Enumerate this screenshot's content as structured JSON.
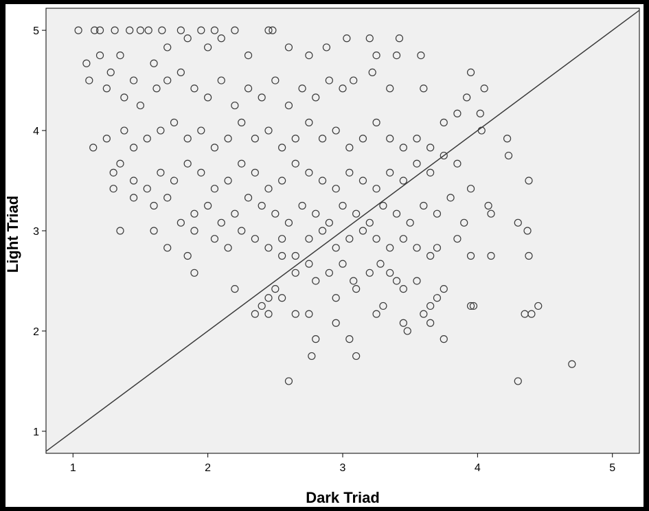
{
  "chart_data": {
    "type": "scatter",
    "title": "",
    "xlabel": "Dark Triad",
    "ylabel": "Light Triad",
    "xlim": [
      0.8,
      5.2
    ],
    "ylim": [
      0.78,
      5.22
    ],
    "x_ticks": [
      "1",
      "2",
      "3",
      "4",
      "5"
    ],
    "y_ticks": [
      "1",
      "2",
      "3",
      "4",
      "5"
    ],
    "grid": false,
    "legend": "none",
    "reference_line": {
      "from": [
        0.8,
        0.8
      ],
      "to": [
        5.2,
        5.2
      ]
    },
    "colors": {
      "background": "#f0f0f0",
      "marker": "#3a3a3a",
      "line": "#3a3a3a",
      "frame": "#000000"
    },
    "series": [
      {
        "marker": "open-circle",
        "points": [
          [
            1.04,
            5.0
          ],
          [
            1.16,
            5.0
          ],
          [
            1.2,
            5.0
          ],
          [
            1.31,
            5.0
          ],
          [
            1.42,
            5.0
          ],
          [
            1.5,
            5.0
          ],
          [
            1.56,
            5.0
          ],
          [
            1.66,
            5.0
          ],
          [
            1.8,
            5.0
          ],
          [
            1.95,
            5.0
          ],
          [
            2.05,
            5.0
          ],
          [
            2.2,
            5.0
          ],
          [
            2.45,
            5.0
          ],
          [
            2.48,
            5.0
          ],
          [
            1.1,
            4.67
          ],
          [
            1.2,
            4.75
          ],
          [
            1.35,
            4.75
          ],
          [
            1.28,
            4.58
          ],
          [
            1.45,
            4.5
          ],
          [
            1.6,
            4.67
          ],
          [
            1.7,
            4.83
          ],
          [
            1.85,
            4.92
          ],
          [
            2.0,
            4.83
          ],
          [
            2.1,
            4.92
          ],
          [
            2.3,
            4.75
          ],
          [
            2.6,
            4.83
          ],
          [
            2.75,
            4.75
          ],
          [
            2.88,
            4.83
          ],
          [
            3.03,
            4.92
          ],
          [
            3.2,
            4.92
          ],
          [
            3.25,
            4.75
          ],
          [
            3.42,
            4.92
          ],
          [
            3.4,
            4.75
          ],
          [
            3.58,
            4.75
          ],
          [
            1.12,
            4.5
          ],
          [
            1.25,
            4.42
          ],
          [
            1.38,
            4.33
          ],
          [
            1.5,
            4.25
          ],
          [
            1.62,
            4.42
          ],
          [
            1.7,
            4.5
          ],
          [
            1.8,
            4.58
          ],
          [
            1.9,
            4.42
          ],
          [
            2.0,
            4.33
          ],
          [
            2.1,
            4.5
          ],
          [
            2.2,
            4.25
          ],
          [
            2.3,
            4.42
          ],
          [
            2.4,
            4.33
          ],
          [
            2.5,
            4.5
          ],
          [
            2.6,
            4.25
          ],
          [
            2.7,
            4.42
          ],
          [
            2.8,
            4.33
          ],
          [
            2.9,
            4.5
          ],
          [
            3.0,
            4.42
          ],
          [
            3.08,
            4.5
          ],
          [
            3.22,
            4.58
          ],
          [
            3.35,
            4.42
          ],
          [
            3.6,
            4.42
          ],
          [
            3.95,
            4.58
          ],
          [
            4.05,
            4.42
          ],
          [
            1.15,
            3.83
          ],
          [
            1.25,
            3.92
          ],
          [
            1.38,
            4.0
          ],
          [
            1.45,
            3.83
          ],
          [
            1.55,
            3.92
          ],
          [
            1.65,
            4.0
          ],
          [
            1.75,
            4.08
          ],
          [
            1.85,
            3.92
          ],
          [
            1.95,
            4.0
          ],
          [
            2.05,
            3.83
          ],
          [
            2.15,
            3.92
          ],
          [
            2.25,
            4.08
          ],
          [
            2.35,
            3.92
          ],
          [
            2.45,
            4.0
          ],
          [
            2.55,
            3.83
          ],
          [
            2.65,
            3.92
          ],
          [
            2.75,
            4.08
          ],
          [
            2.85,
            3.92
          ],
          [
            2.95,
            4.0
          ],
          [
            3.05,
            3.83
          ],
          [
            3.15,
            3.92
          ],
          [
            3.25,
            4.08
          ],
          [
            3.35,
            3.92
          ],
          [
            3.45,
            3.83
          ],
          [
            3.55,
            3.92
          ],
          [
            3.65,
            3.83
          ],
          [
            3.75,
            4.08
          ],
          [
            3.85,
            4.17
          ],
          [
            3.92,
            4.33
          ],
          [
            4.02,
            4.17
          ],
          [
            4.03,
            4.0
          ],
          [
            1.3,
            3.58
          ],
          [
            1.35,
            3.67
          ],
          [
            1.45,
            3.5
          ],
          [
            1.55,
            3.42
          ],
          [
            1.65,
            3.58
          ],
          [
            1.75,
            3.5
          ],
          [
            1.85,
            3.67
          ],
          [
            1.95,
            3.58
          ],
          [
            2.05,
            3.42
          ],
          [
            2.15,
            3.5
          ],
          [
            2.25,
            3.67
          ],
          [
            2.35,
            3.58
          ],
          [
            2.45,
            3.42
          ],
          [
            2.55,
            3.5
          ],
          [
            2.65,
            3.67
          ],
          [
            2.75,
            3.58
          ],
          [
            2.85,
            3.5
          ],
          [
            2.95,
            3.42
          ],
          [
            3.05,
            3.58
          ],
          [
            3.15,
            3.5
          ],
          [
            3.25,
            3.42
          ],
          [
            3.35,
            3.58
          ],
          [
            3.45,
            3.5
          ],
          [
            3.55,
            3.67
          ],
          [
            3.65,
            3.58
          ],
          [
            3.75,
            3.75
          ],
          [
            3.85,
            3.67
          ],
          [
            4.22,
            3.92
          ],
          [
            4.23,
            3.75
          ],
          [
            1.3,
            3.42
          ],
          [
            1.45,
            3.33
          ],
          [
            1.6,
            3.25
          ],
          [
            1.7,
            3.33
          ],
          [
            1.8,
            3.08
          ],
          [
            1.9,
            3.17
          ],
          [
            2.0,
            3.25
          ],
          [
            2.1,
            3.08
          ],
          [
            2.2,
            3.17
          ],
          [
            2.3,
            3.33
          ],
          [
            2.4,
            3.25
          ],
          [
            2.5,
            3.17
          ],
          [
            2.6,
            3.08
          ],
          [
            2.7,
            3.25
          ],
          [
            2.8,
            3.17
          ],
          [
            2.9,
            3.08
          ],
          [
            3.0,
            3.25
          ],
          [
            3.1,
            3.17
          ],
          [
            3.2,
            3.08
          ],
          [
            3.3,
            3.25
          ],
          [
            3.4,
            3.17
          ],
          [
            3.5,
            3.08
          ],
          [
            3.6,
            3.25
          ],
          [
            3.7,
            3.17
          ],
          [
            3.8,
            3.33
          ],
          [
            3.95,
            3.42
          ],
          [
            4.08,
            3.25
          ],
          [
            4.38,
            3.5
          ],
          [
            1.35,
            3.0
          ],
          [
            1.6,
            3.0
          ],
          [
            1.7,
            2.83
          ],
          [
            1.85,
            2.75
          ],
          [
            1.9,
            3.0
          ],
          [
            2.05,
            2.92
          ],
          [
            2.15,
            2.83
          ],
          [
            2.25,
            3.0
          ],
          [
            2.35,
            2.92
          ],
          [
            2.45,
            2.83
          ],
          [
            2.55,
            2.92
          ],
          [
            2.65,
            2.75
          ],
          [
            2.75,
            2.92
          ],
          [
            2.85,
            3.0
          ],
          [
            2.95,
            2.83
          ],
          [
            3.05,
            2.92
          ],
          [
            3.15,
            3.0
          ],
          [
            3.25,
            2.92
          ],
          [
            3.35,
            2.83
          ],
          [
            3.45,
            2.92
          ],
          [
            3.55,
            2.83
          ],
          [
            3.7,
            2.83
          ],
          [
            3.85,
            2.92
          ],
          [
            3.9,
            3.08
          ],
          [
            4.1,
            3.17
          ],
          [
            4.3,
            3.08
          ],
          [
            4.37,
            3.0
          ],
          [
            1.9,
            2.58
          ],
          [
            2.55,
            2.75
          ],
          [
            2.65,
            2.58
          ],
          [
            2.75,
            2.67
          ],
          [
            2.8,
            2.5
          ],
          [
            2.9,
            2.58
          ],
          [
            3.0,
            2.67
          ],
          [
            3.08,
            2.5
          ],
          [
            3.2,
            2.58
          ],
          [
            3.28,
            2.67
          ],
          [
            3.35,
            2.58
          ],
          [
            3.4,
            2.5
          ],
          [
            3.55,
            2.5
          ],
          [
            3.65,
            2.75
          ],
          [
            3.75,
            2.42
          ],
          [
            3.95,
            2.75
          ],
          [
            4.1,
            2.75
          ],
          [
            4.38,
            2.75
          ],
          [
            2.2,
            2.42
          ],
          [
            2.4,
            2.25
          ],
          [
            2.45,
            2.33
          ],
          [
            2.5,
            2.42
          ],
          [
            2.55,
            2.33
          ],
          [
            2.35,
            2.17
          ],
          [
            2.45,
            2.17
          ],
          [
            2.65,
            2.17
          ],
          [
            2.75,
            2.17
          ],
          [
            2.95,
            2.33
          ],
          [
            3.1,
            2.42
          ],
          [
            3.25,
            2.17
          ],
          [
            3.3,
            2.25
          ],
          [
            3.45,
            2.42
          ],
          [
            3.6,
            2.17
          ],
          [
            3.65,
            2.25
          ],
          [
            3.7,
            2.33
          ],
          [
            3.95,
            2.25
          ],
          [
            3.97,
            2.25
          ],
          [
            4.35,
            2.17
          ],
          [
            4.4,
            2.17
          ],
          [
            4.45,
            2.25
          ],
          [
            2.8,
            1.92
          ],
          [
            2.95,
            2.08
          ],
          [
            3.05,
            1.92
          ],
          [
            3.45,
            2.08
          ],
          [
            3.48,
            2.0
          ],
          [
            3.65,
            2.08
          ],
          [
            3.75,
            1.92
          ],
          [
            2.77,
            1.75
          ],
          [
            3.1,
            1.75
          ],
          [
            4.7,
            1.67
          ],
          [
            2.6,
            1.5
          ],
          [
            4.3,
            1.5
          ]
        ]
      }
    ]
  }
}
